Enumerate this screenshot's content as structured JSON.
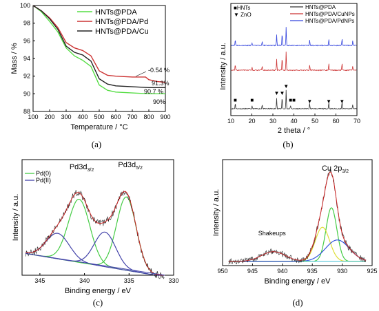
{
  "chart_data": [
    {
      "panel": "(a)",
      "type": "line",
      "xlabel": "Temperature / °C",
      "ylabel": "Mass / %",
      "xlim": [
        100,
        900
      ],
      "ylim": [
        88,
        100
      ],
      "xticks": [
        "100",
        "200",
        "300",
        "400",
        "500",
        "600",
        "700",
        "800",
        "900"
      ],
      "yticks": [
        "88",
        "90",
        "92",
        "94",
        "96",
        "98",
        "100"
      ],
      "legend_position": "top-right",
      "series": [
        {
          "name": "HNTs@PDA",
          "color": "#55dd44",
          "x": [
            100,
            150,
            200,
            250,
            300,
            350,
            400,
            450,
            500,
            550,
            600,
            700,
            800,
            900
          ],
          "y": [
            100,
            99.3,
            98.2,
            97.0,
            95.2,
            94.3,
            93.8,
            93.1,
            91.0,
            90.4,
            90.2,
            90.1,
            90.0,
            90.0
          ]
        },
        {
          "name": "HNTs@PDA/Pd",
          "color": "#cc3333",
          "x": [
            100,
            150,
            200,
            250,
            300,
            350,
            400,
            450,
            500,
            550,
            600,
            700,
            780,
            800,
            850,
            900
          ],
          "y": [
            100,
            99.4,
            98.6,
            97.5,
            95.8,
            95.2,
            94.9,
            94.3,
            92.6,
            92.1,
            92.0,
            91.9,
            91.9,
            91.6,
            91.4,
            91.3
          ]
        },
        {
          "name": "HNTs@PDA/Cu",
          "color": "#222222",
          "x": [
            100,
            150,
            200,
            250,
            300,
            350,
            400,
            450,
            500,
            550,
            600,
            700,
            800,
            900
          ],
          "y": [
            100,
            99.4,
            98.5,
            97.3,
            95.4,
            94.7,
            94.4,
            93.7,
            91.7,
            91.1,
            90.9,
            90.8,
            90.7,
            90.7
          ]
        }
      ],
      "annotations": [
        "-0.54 %",
        "91.3%",
        "90.7 %",
        "90%"
      ]
    },
    {
      "panel": "(b)",
      "type": "line",
      "xlabel": "2 theta / °",
      "ylabel": "Intensity / a.u.",
      "xlim": [
        10,
        70
      ],
      "xticks": [
        "10",
        "20",
        "30",
        "40",
        "50",
        "60",
        "70"
      ],
      "legend_position": "top",
      "series": [
        {
          "name": "HNTs@PDA",
          "color": "#333333",
          "peaks": [
            [
              12.1,
              0.25
            ],
            [
              20.1,
              0.12
            ],
            [
              24.9,
              0.2
            ],
            [
              31.8,
              0.5
            ],
            [
              34.4,
              0.55
            ],
            [
              36.3,
              0.85
            ],
            [
              38.4,
              0.15
            ],
            [
              47.5,
              0.25
            ],
            [
              56.6,
              0.3
            ],
            [
              62.9,
              0.3
            ],
            [
              68,
              0.2
            ]
          ]
        },
        {
          "name": "HNTs@PDA/CuNPs",
          "color": "#cc3333",
          "peaks": [
            [
              12.1,
              0.25
            ],
            [
              20.1,
              0.12
            ],
            [
              24.9,
              0.2
            ],
            [
              31.8,
              0.5
            ],
            [
              34.4,
              0.55
            ],
            [
              36.3,
              0.85
            ],
            [
              47.5,
              0.25
            ],
            [
              56.6,
              0.3
            ],
            [
              62.9,
              0.3
            ],
            [
              68,
              0.2
            ]
          ]
        },
        {
          "name": "HNTs@PDA/PdNPs",
          "color": "#3344dd",
          "peaks": [
            [
              12.1,
              0.25
            ],
            [
              20.1,
              0.12
            ],
            [
              24.9,
              0.2
            ],
            [
              31.8,
              0.5
            ],
            [
              34.4,
              0.55
            ],
            [
              36.3,
              0.85
            ],
            [
              47.5,
              0.25
            ],
            [
              56.6,
              0.3
            ],
            [
              62.9,
              0.3
            ],
            [
              68,
              0.2
            ]
          ]
        }
      ],
      "markers": {
        "HNTs": {
          "symbol": "■",
          "x": [
            12.1,
            20.1,
            38.4,
            40
          ]
        },
        "ZnO": {
          "symbol": "▼",
          "x": [
            31.8,
            34.4,
            36.3,
            47.5,
            56.6,
            62.9
          ]
        }
      }
    },
    {
      "panel": "(c)",
      "type": "line",
      "xlabel": "Binding energy / eV",
      "ylabel": "Intensity / a.u.",
      "xlim": [
        347,
        330
      ],
      "xticks": [
        "345",
        "340",
        "335",
        "330"
      ],
      "peak_labels": [
        {
          "main": "Pd3d",
          "sub": "3/2"
        },
        {
          "main": "Pd3d",
          "sub": "5/2"
        }
      ],
      "legend_position": "top-left",
      "series": [
        {
          "name": "Pd(0)",
          "color": "#44cc44",
          "peaks": [
            [
              340.6,
              0.62,
              1.2
            ],
            [
              335.3,
              0.72,
              1.1
            ]
          ]
        },
        {
          "name": "Pd(II)",
          "color": "#4444aa",
          "peaks": [
            [
              343.0,
              0.25,
              1.3
            ],
            [
              337.7,
              0.34,
              1.2
            ]
          ]
        }
      ]
    },
    {
      "panel": "(d)",
      "type": "line",
      "xlabel": "Binding energy / eV",
      "ylabel": "Intensity / a.u.",
      "xlim": [
        950,
        925
      ],
      "xticks": [
        "950",
        "945",
        "940",
        "935",
        "930",
        "925"
      ],
      "peak_labels": [
        {
          "main": "Cu 2p",
          "sub": "3/2"
        },
        {
          "main": "Shakeups",
          "sub": ""
        }
      ],
      "series": [
        {
          "name": "fit-green",
          "color": "#44cc44",
          "peaks": [
            [
              931.8,
              0.55,
              0.9
            ]
          ]
        },
        {
          "name": "fit-yellow",
          "color": "#dddd33",
          "peaks": [
            [
              933.3,
              0.35,
              1.2
            ]
          ]
        },
        {
          "name": "fit-blue",
          "color": "#3355dd",
          "peaks": [
            [
              930.8,
              0.22,
              2.0
            ]
          ]
        },
        {
          "name": "fit-cyan",
          "color": "#66ccdd",
          "peaks": [
            [
              941.5,
              0.1,
              2.0
            ]
          ]
        }
      ]
    }
  ]
}
